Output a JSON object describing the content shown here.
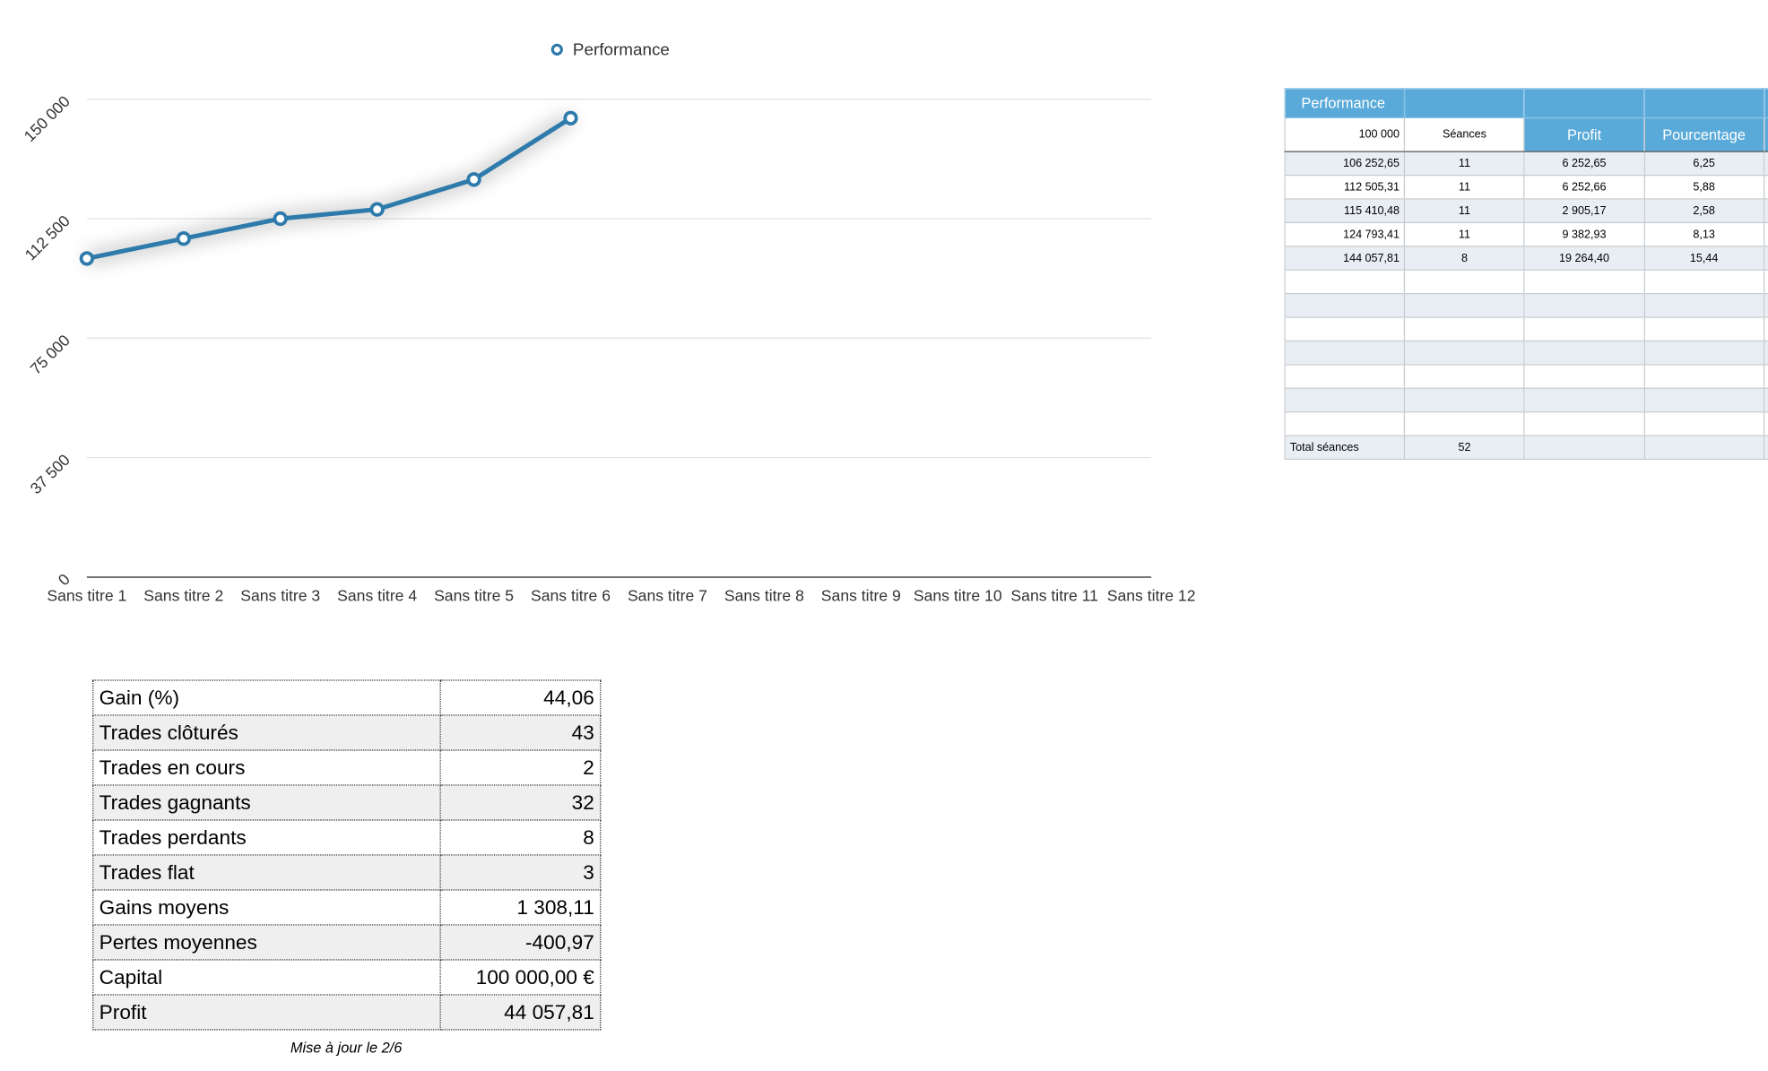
{
  "chart_data": {
    "type": "line",
    "categories": [
      "Sans titre 1",
      "Sans titre 2",
      "Sans titre 3",
      "Sans titre 4",
      "Sans titre 5",
      "Sans titre 6",
      "Sans titre 7",
      "Sans titre 8",
      "Sans titre 9",
      "Sans titre 10",
      "Sans titre 11",
      "Sans titre 12"
    ],
    "series": [
      {
        "name": "Performance",
        "color": "#2e7bab",
        "values": [
          100000,
          106252.65,
          112505.31,
          115410.48,
          124793.41,
          144057.81,
          null,
          null,
          null,
          null,
          null,
          null
        ]
      }
    ],
    "ylim": [
      0,
      150000
    ],
    "yticks": [
      0,
      {
        "value": 37500,
        "label": "37 500"
      },
      {
        "value": 75000,
        "label": "75 000"
      },
      {
        "value": 112500,
        "label": "112 500"
      },
      {
        "value": 150000,
        "label": "150 000"
      }
    ],
    "grid": true,
    "legend": "top"
  },
  "perf_table": {
    "header": [
      "Performance"
    ],
    "subheader": [
      "100 000",
      "Séances",
      "Profit",
      "Pourcentage"
    ],
    "rows": [
      [
        "106 252,65",
        "11",
        "6 252,65",
        "6,25"
      ],
      [
        "112 505,31",
        "11",
        "6 252,66",
        "5,88"
      ],
      [
        "115 410,48",
        "11",
        "2 905,17",
        "2,58"
      ],
      [
        "124 793,41",
        "11",
        "9 382,93",
        "8,13"
      ],
      [
        "144 057,81",
        "8",
        "19 264,40",
        "15,44"
      ]
    ],
    "total": [
      "Total séances",
      "52"
    ]
  },
  "summary": {
    "rows": [
      [
        "Gain (%)",
        "44,06"
      ],
      [
        "Trades clôturés",
        "43"
      ],
      [
        "Trades en cours",
        "2"
      ],
      [
        "Trades gagnants",
        "32"
      ],
      [
        "Trades perdants",
        "8"
      ],
      [
        "Trades flat",
        "3"
      ],
      [
        "Gains moyens",
        "1 308,11"
      ],
      [
        "Pertes moyennes",
        "-400,97"
      ],
      [
        "Capital",
        "100 000,00 €"
      ],
      [
        "Profit",
        "44 057,81"
      ]
    ],
    "note": "Mise à jour le 2/6"
  }
}
